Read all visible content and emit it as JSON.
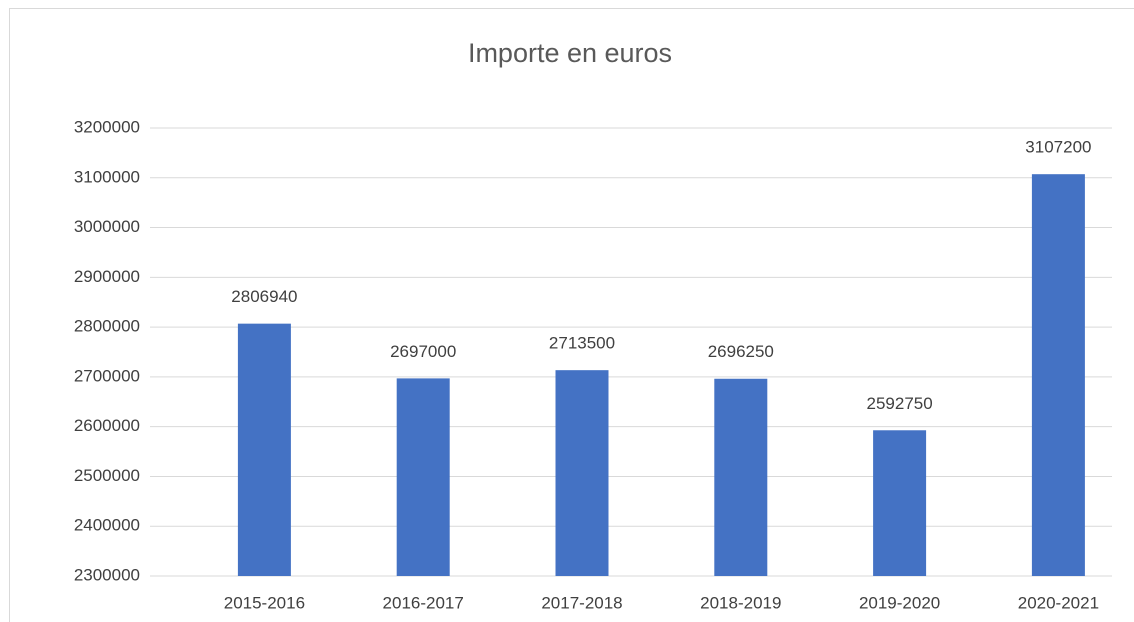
{
  "chart_data": {
    "type": "bar",
    "title": "Importe en euros",
    "categories": [
      "2015-2016",
      "2016-2017",
      "2017-2018",
      "2018-2019",
      "2019-2020",
      "2020-2021"
    ],
    "values": [
      2806940,
      2697000,
      2713500,
      2696250,
      2592750,
      3107200
    ],
    "color": "#4472c4",
    "ylim": [
      2300000,
      3200000
    ],
    "yticks": [
      2300000,
      2400000,
      2500000,
      2600000,
      2700000,
      2800000,
      2900000,
      3000000,
      3100000,
      3200000
    ],
    "grid": true
  }
}
